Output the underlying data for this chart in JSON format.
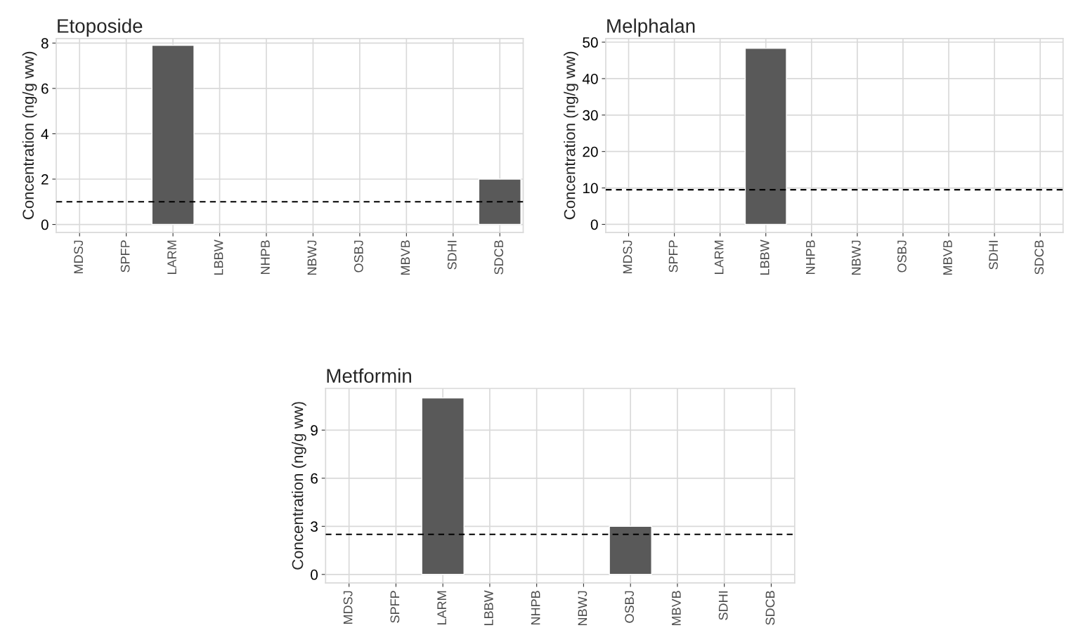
{
  "chart_data": [
    {
      "type": "bar",
      "title": "Etoposide",
      "ylabel": "Concentration (ng/g ww)",
      "categories": [
        "MDSJ",
        "SPFP",
        "LARM",
        "LBBW",
        "NHPB",
        "NBWJ",
        "OSBJ",
        "MBVB",
        "SDHI",
        "SDCB"
      ],
      "values": [
        null,
        null,
        7.9,
        null,
        null,
        null,
        null,
        null,
        null,
        2.0
      ],
      "color": "#595959",
      "ylim": [
        -0.35,
        8.2
      ],
      "yticks": [
        0,
        2,
        4,
        6,
        8
      ],
      "grid": true,
      "ref_lines": [
        {
          "axis": "y",
          "value": 1.0,
          "line_style": "dashed",
          "color": "#000000"
        }
      ]
    },
    {
      "type": "bar",
      "title": "Melphalan",
      "ylabel": "Concentration (ng/g ww)",
      "categories": [
        "MDSJ",
        "SPFP",
        "LARM",
        "LBBW",
        "NHPB",
        "NBWJ",
        "OSBJ",
        "MBVB",
        "SDHI",
        "SDCB"
      ],
      "values": [
        null,
        null,
        null,
        48.3,
        null,
        null,
        null,
        null,
        null,
        null
      ],
      "color": "#595959",
      "ylim": [
        -2.2,
        51
      ],
      "yticks": [
        0,
        10,
        20,
        30,
        40,
        50
      ],
      "grid": true,
      "ref_lines": [
        {
          "axis": "y",
          "value": 9.5,
          "line_style": "dashed",
          "color": "#000000"
        }
      ]
    },
    {
      "type": "bar",
      "title": "Metformin",
      "ylabel": "Concentration (ng/g ww)",
      "categories": [
        "MDSJ",
        "SPFP",
        "LARM",
        "LBBW",
        "NHPB",
        "NBWJ",
        "OSBJ",
        "MBVB",
        "SDHI",
        "SDCB"
      ],
      "values": [
        null,
        null,
        11.0,
        null,
        null,
        null,
        3.0,
        null,
        null,
        null
      ],
      "color": "#595959",
      "ylim": [
        -0.53,
        11.6
      ],
      "yticks": [
        0,
        3,
        6,
        9
      ],
      "grid": true,
      "ref_lines": [
        {
          "axis": "y",
          "value": 2.5,
          "line_style": "dashed",
          "color": "#000000"
        }
      ]
    }
  ]
}
